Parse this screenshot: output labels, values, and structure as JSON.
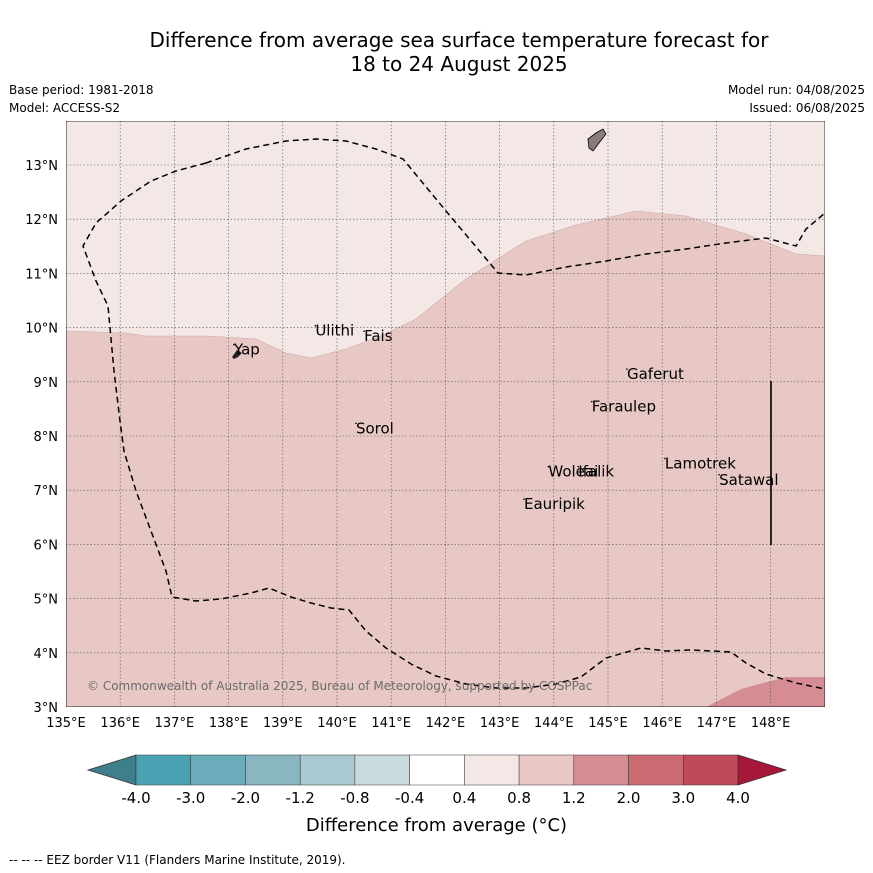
{
  "title": {
    "line1": "Difference from average sea surface temperature forecast for",
    "line2": "18 to 24 August 2025"
  },
  "meta": {
    "base_period": "Base period: 1981-2018",
    "model": "Model: ACCESS-S2",
    "model_run": "Model run: 04/08/2025",
    "issued": "Issued: 06/08/2025"
  },
  "map": {
    "lon_ticks": [
      "135°E",
      "136°E",
      "137°E",
      "138°E",
      "139°E",
      "140°E",
      "141°E",
      "142°E",
      "143°E",
      "144°E",
      "145°E",
      "146°E",
      "147°E",
      "148°E"
    ],
    "lat_ticks": [
      "3°N",
      "4°N",
      "5°N",
      "6°N",
      "7°N",
      "8°N",
      "9°N",
      "10°N",
      "11°N",
      "12°N",
      "13°N"
    ],
    "places": [
      {
        "name": "Ulithi",
        "lon": 139.6,
        "lat": 9.85
      },
      {
        "name": "Fais",
        "lon": 140.5,
        "lat": 9.75
      },
      {
        "name": "Yap",
        "lon": 138.1,
        "lat": 9.5
      },
      {
        "name": "Gaferut",
        "lon": 145.35,
        "lat": 9.05
      },
      {
        "name": "Faraulep",
        "lon": 144.7,
        "lat": 8.45
      },
      {
        "name": "Sorol",
        "lon": 140.35,
        "lat": 8.05
      },
      {
        "name": "Woleai",
        "lon": 143.9,
        "lat": 7.25
      },
      {
        "name": "Ifalik",
        "lon": 144.45,
        "lat": 7.25
      },
      {
        "name": "Lamotrek",
        "lon": 146.05,
        "lat": 7.4
      },
      {
        "name": "Satawal",
        "lon": 147.05,
        "lat": 7.1
      },
      {
        "name": "Eauripik",
        "lon": 143.45,
        "lat": 6.65
      }
    ],
    "copyright": "© Commonwealth of Australia 2025, Bureau of Meteorology, supported by COSPPac",
    "colors": {
      "band_0.4_0.8": "#f4e8e7",
      "band_0.8_1.2": "#e7c8c4",
      "band_1.2_2.0": "#d58c92",
      "eez_line": "#000000",
      "land": "#8a7a7a"
    }
  },
  "colorbar": {
    "ticks": [
      "-4.0",
      "-3.0",
      "-2.0",
      "-1.2",
      "-0.8",
      "-0.4",
      "0.4",
      "0.8",
      "1.2",
      "2.0",
      "3.0",
      "4.0"
    ],
    "colors": [
      "#3d7f8a",
      "#4aa1b2",
      "#6badbb",
      "#8ab6c2",
      "#a9c8cf",
      "#c9dadc",
      "#ffffff",
      "#f4e8e7",
      "#e7c8c4",
      "#d58c92",
      "#cc6a72",
      "#bf4a58",
      "#a6183a"
    ],
    "label": "Difference from average (°C)"
  },
  "footnote": "-- -- -- EEZ border V11 (Flanders Marine Institute, 2019)."
}
